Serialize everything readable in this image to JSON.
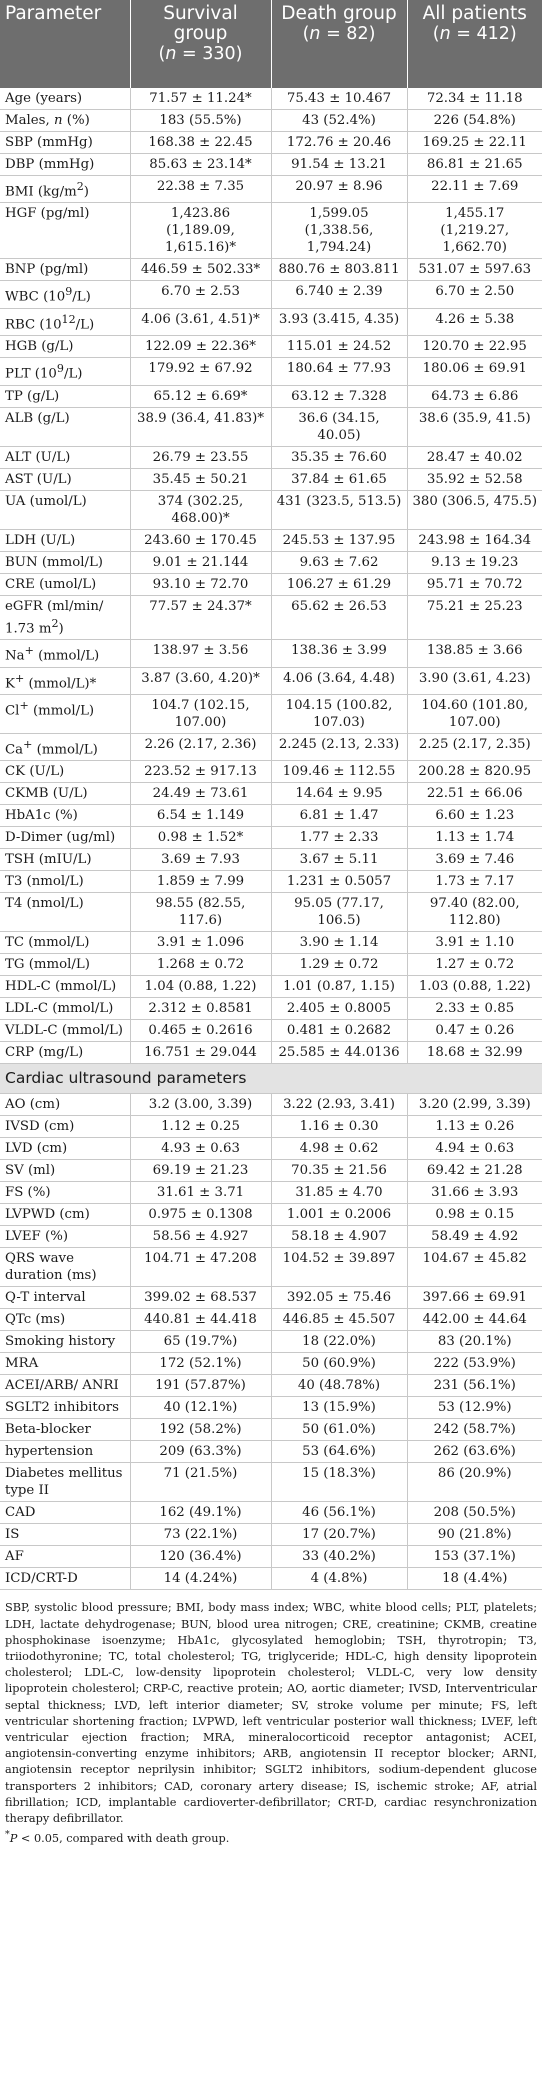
{
  "header": {
    "parameter": "Parameter",
    "groups": [
      {
        "name_line1": "Survival",
        "name_line2": "group",
        "n_prefix": "n",
        "n_value": " = 330"
      },
      {
        "name_line1": "Death group",
        "name_line2": "",
        "n_prefix": "n",
        "n_value": " = 82"
      },
      {
        "name_line1": "All patients",
        "name_line2": "",
        "n_prefix": "n",
        "n_value": " = 412"
      }
    ]
  },
  "rows": [
    {
      "p": "Age (years)",
      "s": "71.57 ± 11.24*",
      "d": "75.43 ± 10.467",
      "a": "72.34 ± 11.18"
    },
    {
      "p": "Males, ",
      "pi": "n",
      "ps": " (%)",
      "s": "183 (55.5%)",
      "d": "43 (52.4%)",
      "a": "226 (54.8%)"
    },
    {
      "p": "SBP (mmHg)",
      "s": "168.38 ± 22.45",
      "d": "172.76 ± 20.46",
      "a": "169.25 ± 22.11"
    },
    {
      "p": "DBP (mmHg)",
      "s": "85.63 ± 23.14*",
      "d": "91.54 ± 13.21",
      "a": "86.81 ± 21.65"
    },
    {
      "p": "BMI (kg/m",
      "sup": "2",
      "ps": ")",
      "s": "22.38 ± 7.35",
      "d": "20.97 ± 8.96",
      "a": "22.11 ± 7.69"
    },
    {
      "p": "HGF (pg/ml)",
      "s": "1,423.86 (1,189.09, 1,615.16)*",
      "d": "1,599.05 (1,338.56, 1,794.24)",
      "a": "1,455.17 (1,219.27, 1,662.70)"
    },
    {
      "p": "BNP (pg/ml)",
      "s": "446.59 ± 502.33*",
      "d": "880.76 ± 803.811",
      "a": "531.07 ± 597.63"
    },
    {
      "p": "WBC (10",
      "sup": "9",
      "ps": "/L)",
      "s": "6.70 ± 2.53",
      "d": "6.740 ± 2.39",
      "a": "6.70 ± 2.50"
    },
    {
      "p": "RBC (10",
      "sup": "12",
      "ps": "/L)",
      "s": "4.06 (3.61, 4.51)*",
      "d": "3.93 (3.415, 4.35)",
      "a": "4.26 ± 5.38"
    },
    {
      "p": "HGB (g/L)",
      "s": "122.09 ± 22.36*",
      "d": "115.01 ± 24.52",
      "a": "120.70 ± 22.95"
    },
    {
      "p": "PLT (10",
      "sup": "9",
      "ps": "/L)",
      "s": "179.92 ± 67.92",
      "d": "180.64 ± 77.93",
      "a": "180.06 ± 69.91"
    },
    {
      "p": "TP (g/L)",
      "s": "65.12 ± 6.69*",
      "d": "63.12 ± 7.328",
      "a": "64.73 ± 6.86"
    },
    {
      "p": "ALB (g/L)",
      "s": "38.9 (36.4, 41.83)*",
      "d": "36.6 (34.15, 40.05)",
      "a": "38.6 (35.9, 41.5)"
    },
    {
      "p": "ALT (U/L)",
      "s": "26.79 ± 23.55",
      "d": "35.35 ± 76.60",
      "a": "28.47 ± 40.02"
    },
    {
      "p": "AST (U/L)",
      "s": "35.45 ± 50.21",
      "d": "37.84 ± 61.65",
      "a": "35.92 ± 52.58"
    },
    {
      "p": "UA (umol/L)",
      "s": "374 (302.25, 468.00)*",
      "d": "431 (323.5, 513.5)",
      "a": "380 (306.5, 475.5)"
    },
    {
      "p": "LDH (U/L)",
      "s": "243.60 ± 170.45",
      "d": "245.53 ± 137.95",
      "a": "243.98 ± 164.34"
    },
    {
      "p": "BUN (mmol/L)",
      "s": "9.01 ± 21.144",
      "d": "9.63 ± 7.62",
      "a": "9.13 ± 19.23"
    },
    {
      "p": "CRE (umol/L)",
      "s": "93.10 ± 72.70",
      "d": "106.27 ± 61.29",
      "a": "95.71 ± 70.72"
    },
    {
      "p": "eGFR (ml/min/ 1.73 m",
      "sup": "2",
      "ps": ")",
      "s": "77.57 ± 24.37*",
      "d": "65.62 ± 26.53",
      "a": "75.21 ± 25.23"
    },
    {
      "p": "Na",
      "sup": "+",
      "ps": " (mmol/L)",
      "s": "138.97 ± 3.56",
      "d": "138.36 ± 3.99",
      "a": "138.85 ± 3.66"
    },
    {
      "p": "K",
      "sup": "+",
      "ps": " (mmol/L)*",
      "s": "3.87 (3.60, 4.20)*",
      "d": "4.06 (3.64, 4.48)",
      "a": "3.90 (3.61, 4.23)"
    },
    {
      "p": "Cl",
      "sup": "+",
      "ps": " (mmol/L)",
      "s": "104.7 (102.15, 107.00)",
      "d": "104.15 (100.82, 107.03)",
      "a": "104.60 (101.80, 107.00)"
    },
    {
      "p": "Ca",
      "sup": "+",
      "ps": " (mmol/L)",
      "s": "2.26 (2.17, 2.36)",
      "d": "2.245 (2.13, 2.33)",
      "a": "2.25 (2.17, 2.35)"
    },
    {
      "p": "CK (U/L)",
      "s": "223.52 ± 917.13",
      "d": "109.46 ± 112.55",
      "a": "200.28 ± 820.95"
    },
    {
      "p": "CKMB (U/L)",
      "s": "24.49 ± 73.61",
      "d": "14.64 ± 9.95",
      "a": "22.51 ± 66.06"
    },
    {
      "p": "HbA1c (%)",
      "s": "6.54 ± 1.149",
      "d": "6.81 ± 1.47",
      "a": "6.60 ± 1.23"
    },
    {
      "p": "D-Dimer (ug/ml)",
      "s": "0.98 ± 1.52*",
      "d": "1.77 ± 2.33",
      "a": "1.13 ± 1.74"
    },
    {
      "p": "TSH (mIU/L)",
      "s": "3.69 ± 7.93",
      "d": "3.67 ± 5.11",
      "a": "3.69 ± 7.46"
    },
    {
      "p": "T3 (nmol/L)",
      "s": "1.859 ± 7.99",
      "d": "1.231 ± 0.5057",
      "a": "1.73 ± 7.17"
    },
    {
      "p": "T4 (nmol/L)",
      "s": "98.55 (82.55, 117.6)",
      "d": "95.05 (77.17, 106.5)",
      "a": "97.40 (82.00, 112.80)"
    },
    {
      "p": "TC (mmol/L)",
      "s": "3.91 ± 1.096",
      "d": "3.90 ± 1.14",
      "a": "3.91 ± 1.10"
    },
    {
      "p": "TG (mmol/L)",
      "s": "1.268 ± 0.72",
      "d": "1.29 ± 0.72",
      "a": "1.27 ± 0.72"
    },
    {
      "p": "HDL-C (mmol/L)",
      "s": "1.04 (0.88, 1.22)",
      "d": "1.01 (0.87, 1.15)",
      "a": "1.03 (0.88, 1.22)"
    },
    {
      "p": "LDL-C (mmol/L)",
      "s": "2.312 ± 0.8581",
      "d": "2.405 ± 0.8005",
      "a": "2.33 ± 0.85"
    },
    {
      "p": "VLDL-C (mmol/L)",
      "s": "0.465 ± 0.2616",
      "d": "0.481 ± 0.2682",
      "a": "0.47 ± 0.26"
    },
    {
      "p": "CRP (mg/L)",
      "s": "16.751 ± 29.044",
      "d": "25.585 ± 44.0136",
      "a": "18.68 ± 32.99"
    }
  ],
  "section_title": "Cardiac ultrasound parameters",
  "rows2": [
    {
      "p": "AO (cm)",
      "s": "3.2 (3.00, 3.39)",
      "d": "3.22 (2.93, 3.41)",
      "a": "3.20 (2.99, 3.39)"
    },
    {
      "p": "IVSD (cm)",
      "s": "1.12 ± 0.25",
      "d": "1.16 ± 0.30",
      "a": "1.13 ± 0.26"
    },
    {
      "p": "LVD (cm)",
      "s": "4.93 ± 0.63",
      "d": "4.98 ± 0.62",
      "a": "4.94 ± 0.63"
    },
    {
      "p": "SV (ml)",
      "s": "69.19 ± 21.23",
      "d": "70.35 ± 21.56",
      "a": "69.42 ± 21.28"
    },
    {
      "p": "FS (%)",
      "s": "31.61 ± 3.71",
      "d": "31.85 ± 4.70",
      "a": "31.66 ± 3.93"
    },
    {
      "p": "LVPWD (cm)",
      "s": "0.975 ± 0.1308",
      "d": "1.001 ± 0.2006",
      "a": "0.98 ± 0.15"
    },
    {
      "p": "LVEF (%)",
      "s": "58.56 ± 4.927",
      "d": "58.18 ± 4.907",
      "a": "58.49 ± 4.92"
    },
    {
      "p": "QRS wave duration (ms)",
      "s": "104.71 ± 47.208",
      "d": "104.52 ± 39.897",
      "a": "104.67 ± 45.82"
    },
    {
      "p": "Q-T interval",
      "s": "399.02 ± 68.537",
      "d": "392.05 ± 75.46",
      "a": "397.66 ± 69.91"
    },
    {
      "p": "QTc (ms)",
      "s": "440.81 ± 44.418",
      "d": "446.85 ± 45.507",
      "a": "442.00 ± 44.64"
    },
    {
      "p": "Smoking history",
      "s": "65 (19.7%)",
      "d": "18 (22.0%)",
      "a": "83 (20.1%)"
    },
    {
      "p": "MRA",
      "s": "172 (52.1%)",
      "d": "50 (60.9%)",
      "a": "222 (53.9%)"
    },
    {
      "p": "ACEI/ARB/ ANRI",
      "s": "191 (57.87%)",
      "d": "40 (48.78%)",
      "a": "231 (56.1%)"
    },
    {
      "p": "SGLT2 inhibitors",
      "s": "40 (12.1%)",
      "d": "13 (15.9%)",
      "a": "53 (12.9%)"
    },
    {
      "p": "Beta-blocker",
      "s": "192 (58.2%)",
      "d": "50 (61.0%)",
      "a": "242 (58.7%)"
    },
    {
      "p": "hypertension",
      "s": "209 (63.3%)",
      "d": "53 (64.6%)",
      "a": "262 (63.6%)"
    },
    {
      "p": "Diabetes mellitus type II",
      "s": "71 (21.5%)",
      "d": "15 (18.3%)",
      "a": "86 (20.9%)"
    },
    {
      "p": "CAD",
      "s": "162 (49.1%)",
      "d": "46 (56.1%)",
      "a": "208 (50.5%)"
    },
    {
      "p": "IS",
      "s": "73 (22.1%)",
      "d": "17 (20.7%)",
      "a": "90 (21.8%)"
    },
    {
      "p": "AF",
      "s": "120 (36.4%)",
      "d": "33 (40.2%)",
      "a": "153 (37.1%)"
    },
    {
      "p": "ICD/CRT-D",
      "s": "14 (4.24%)",
      "d": "4 (4.8%)",
      "a": "18 (4.4%)"
    }
  ],
  "footnote": "SBP, systolic blood pressure; BMI, body mass index; WBC, white blood cells; PLT, platelets; LDH, lactate dehydrogenase; BUN, blood urea nitrogen; CRE, creatinine; CKMB, creatine phosphokinase isoenzyme; HbA1c, glycosylated hemoglobin; TSH, thyrotropin; T3, triiodothyronine; TC, total cholesterol; TG, triglyceride; HDL-C, high density lipoprotein cholesterol; LDL-C, low-density lipoprotein cholesterol; VLDL-C, very low density lipoprotein cholesterol; CRP-C, reactive protein; AO, aortic diameter; IVSD, Interventricular septal thickness; LVD, left interior diameter; SV, stroke volume per minute; FS, left ventricular shortening fraction; LVPWD, left ventricular posterior wall thickness; LVEF, left ventricular ejection fraction; MRA, mineralocorticoid receptor antagonist; ACEI, angiotensin-converting enzyme inhibitors; ARB, angiotensin II receptor blocker; ARNI, angiotensin receptor neprilysin inhibitor; SGLT2 inhibitors, sodium-dependent glucose transporters 2 inhibitors; CAD, coronary artery disease; IS, ischemic stroke; AF, atrial fibrillation; ICD, implantable cardioverter-defibrillator; CRT-D, cardiac resynchronization therapy defibrillator.",
  "significance": {
    "mark": "*",
    "p": "P",
    "text": " < 0.05, compared with death group."
  }
}
